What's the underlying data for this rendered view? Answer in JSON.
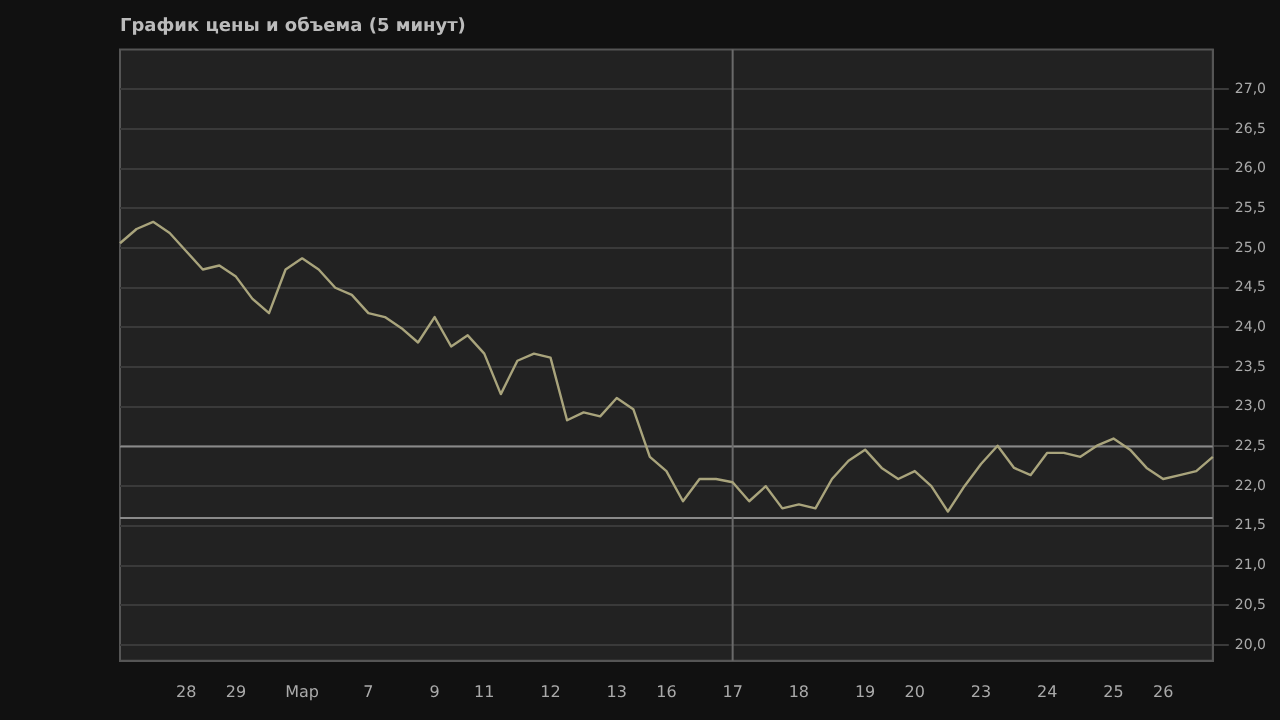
{
  "chart_data": {
    "type": "line",
    "title": "График цены и объема (5 минут)",
    "categories": [
      null,
      null,
      null,
      null,
      "28",
      null,
      null,
      "29",
      null,
      null,
      null,
      "Мар",
      null,
      null,
      null,
      "7",
      null,
      null,
      null,
      "9",
      null,
      null,
      "11",
      null,
      null,
      null,
      "12",
      null,
      null,
      null,
      "13",
      null,
      null,
      "16",
      null,
      null,
      null,
      "17",
      null,
      null,
      null,
      "18",
      null,
      null,
      null,
      "19",
      null,
      null,
      "20",
      null,
      null,
      null,
      "23",
      null,
      null,
      null,
      "24",
      null,
      null,
      null,
      "25",
      null,
      null,
      "26",
      null,
      null,
      null
    ],
    "series": [
      {
        "color": "#a9a47c",
        "values": [
          25.06,
          25.24,
          25.33,
          25.19,
          24.96,
          24.73,
          24.78,
          24.64,
          24.36,
          24.18,
          24.73,
          24.87,
          24.73,
          24.5,
          24.41,
          24.18,
          24.13,
          23.99,
          23.81,
          24.13,
          23.76,
          23.9,
          23.67,
          23.16,
          23.58,
          23.67,
          23.62,
          22.83,
          22.93,
          22.88,
          23.11,
          22.97,
          22.37,
          22.19,
          21.81,
          22.09,
          22.09,
          22.05,
          21.81,
          22.0,
          21.72,
          21.77,
          21.72,
          22.09,
          22.32,
          22.46,
          22.23,
          22.09,
          22.19,
          22.0,
          21.68,
          22.0,
          22.28,
          22.51,
          22.23,
          22.14,
          22.42,
          22.42,
          22.37,
          22.51,
          22.6,
          22.46,
          22.23,
          22.09,
          22.14,
          22.19,
          22.37
        ]
      }
    ],
    "ylim": [
      19.8,
      27.5
    ],
    "yticks": [
      {
        "value": 20,
        "label": "20,0"
      },
      {
        "value": 20.5,
        "label": "20,5"
      },
      {
        "value": 21,
        "label": "21,0"
      },
      {
        "value": 21.5,
        "label": "21,5"
      },
      {
        "value": 22,
        "label": "22,0"
      },
      {
        "value": 22.5,
        "label": "22,5"
      },
      {
        "value": 23,
        "label": "23,0"
      },
      {
        "value": 23.5,
        "label": "23,5"
      },
      {
        "value": 24,
        "label": "24,0"
      },
      {
        "value": 24.5,
        "label": "24,5"
      },
      {
        "value": 25,
        "label": "25,0"
      },
      {
        "value": 25.5,
        "label": "25,5"
      },
      {
        "value": 26,
        "label": "26,0"
      },
      {
        "value": 26.5,
        "label": "26,5"
      },
      {
        "value": 27,
        "label": "27,0"
      }
    ],
    "ref_lines": [
      {
        "axis": "y",
        "value": 22.5,
        "color": "#8a8a8a"
      },
      {
        "axis": "y",
        "value": 21.6,
        "color": "#8a8a8a"
      },
      {
        "axis": "x",
        "value": "17",
        "color": "#6a6a6a"
      }
    ],
    "grid": "y",
    "marker": "none",
    "line_style": "solid",
    "legend": false
  }
}
